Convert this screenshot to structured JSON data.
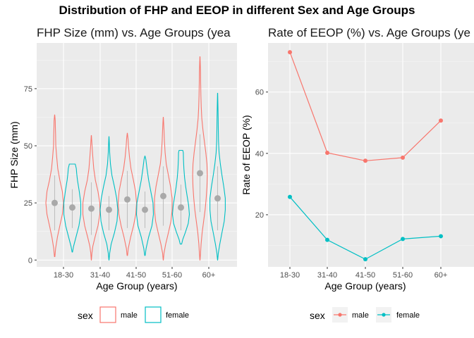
{
  "figure": {
    "title": "Distribution of FHP and EEOP in different Sex and Age Groups",
    "colors": {
      "male": "#F8766D",
      "female": "#00BFC4",
      "panel": "#EBEBEB",
      "grid": "#FFFFFF",
      "median_point": "#A9A9A9",
      "median_line": "#BFBFBF"
    },
    "legend_left": {
      "title": "sex",
      "entries": [
        "male",
        "female"
      ]
    },
    "legend_right": {
      "title": "sex",
      "entries": [
        "male",
        "female"
      ]
    }
  },
  "chart_data": [
    {
      "type": "violin",
      "title": "FHP Size (mm) vs. Age Groups (yea",
      "xlabel": "Age Group (years)",
      "ylabel": "FHP Size (mm)",
      "categories": [
        "18-30",
        "31-40",
        "41-50",
        "51-60",
        "60+"
      ],
      "ylim": [
        -3,
        95
      ],
      "yticks": [
        0,
        25,
        50,
        75
      ],
      "grid": true,
      "legend_position": "bottom",
      "series": [
        {
          "name": "male",
          "color": "#F8766D",
          "medians": [
            25,
            22.5,
            26.5,
            28,
            38
          ],
          "whisker_low": [
            13,
            11,
            14,
            15,
            21
          ],
          "whisker_high": [
            37,
            34,
            39,
            41,
            55
          ],
          "min": [
            1.5,
            0,
            2,
            0,
            0
          ],
          "max": [
            63.5,
            54.5,
            55.5,
            62.5,
            89
          ],
          "density": [
            [
              [
                1.5,
                0.01
              ],
              [
                5,
                0.05
              ],
              [
                10,
                0.15
              ],
              [
                15,
                0.28
              ],
              [
                20,
                0.42
              ],
              [
                25,
                0.48
              ],
              [
                30,
                0.42
              ],
              [
                35,
                0.28
              ],
              [
                40,
                0.17
              ],
              [
                45,
                0.11
              ],
              [
                50,
                0.06
              ],
              [
                55,
                0.05
              ],
              [
                58,
                0.04
              ],
              [
                61,
                0.03
              ],
              [
                63.5,
                0.005
              ]
            ],
            [
              [
                0,
                0.005
              ],
              [
                3,
                0.03
              ],
              [
                6,
                0.08
              ],
              [
                10,
                0.2
              ],
              [
                15,
                0.36
              ],
              [
                20,
                0.46
              ],
              [
                25,
                0.46
              ],
              [
                30,
                0.36
              ],
              [
                35,
                0.22
              ],
              [
                40,
                0.13
              ],
              [
                45,
                0.08
              ],
              [
                50,
                0.04
              ],
              [
                54.5,
                0.005
              ]
            ],
            [
              [
                2,
                0.01
              ],
              [
                5,
                0.05
              ],
              [
                10,
                0.18
              ],
              [
                15,
                0.34
              ],
              [
                20,
                0.46
              ],
              [
                25,
                0.5
              ],
              [
                30,
                0.45
              ],
              [
                35,
                0.33
              ],
              [
                40,
                0.2
              ],
              [
                45,
                0.12
              ],
              [
                50,
                0.06
              ],
              [
                53,
                0.04
              ],
              [
                55.5,
                0.005
              ]
            ],
            [
              [
                0,
                0.005
              ],
              [
                3,
                0.04
              ],
              [
                7,
                0.13
              ],
              [
                12,
                0.28
              ],
              [
                17,
                0.42
              ],
              [
                22,
                0.48
              ],
              [
                27,
                0.48
              ],
              [
                32,
                0.4
              ],
              [
                37,
                0.28
              ],
              [
                42,
                0.16
              ],
              [
                47,
                0.1
              ],
              [
                52,
                0.06
              ],
              [
                57,
                0.04
              ],
              [
                62.5,
                0.005
              ]
            ],
            [
              [
                0,
                0.005
              ],
              [
                3,
                0.03
              ],
              [
                7,
                0.06
              ],
              [
                12,
                0.12
              ],
              [
                17,
                0.2
              ],
              [
                22,
                0.28
              ],
              [
                27,
                0.34
              ],
              [
                32,
                0.38
              ],
              [
                37,
                0.4
              ],
              [
                42,
                0.38
              ],
              [
                47,
                0.32
              ],
              [
                52,
                0.24
              ],
              [
                57,
                0.16
              ],
              [
                62,
                0.1
              ],
              [
                67,
                0.07
              ],
              [
                72,
                0.05
              ],
              [
                77,
                0.04
              ],
              [
                82,
                0.03
              ],
              [
                86,
                0.015
              ],
              [
                89,
                0.005
              ]
            ]
          ]
        },
        {
          "name": "female",
          "color": "#00BFC4",
          "medians": [
            23,
            22,
            22,
            23,
            27
          ],
          "whisker_low": [
            14,
            13,
            14,
            13,
            13
          ],
          "whisker_high": [
            31,
            28,
            30,
            33,
            41
          ],
          "min": [
            3.5,
            0,
            2,
            7,
            0
          ],
          "max": [
            42,
            54,
            45.5,
            48,
            73
          ],
          "density": [
            [
              [
                3.5,
                0.01
              ],
              [
                6,
                0.07
              ],
              [
                10,
                0.2
              ],
              [
                15,
                0.36
              ],
              [
                20,
                0.46
              ],
              [
                25,
                0.46
              ],
              [
                30,
                0.38
              ],
              [
                35,
                0.28
              ],
              [
                38,
                0.24
              ],
              [
                40,
                0.22
              ],
              [
                42,
                0.16
              ]
            ],
            [
              [
                0,
                0.005
              ],
              [
                3,
                0.04
              ],
              [
                7,
                0.12
              ],
              [
                12,
                0.3
              ],
              [
                17,
                0.44
              ],
              [
                22,
                0.48
              ],
              [
                27,
                0.42
              ],
              [
                32,
                0.3
              ],
              [
                37,
                0.16
              ],
              [
                42,
                0.08
              ],
              [
                47,
                0.04
              ],
              [
                51,
                0.02
              ],
              [
                54,
                0.005
              ]
            ],
            [
              [
                2,
                0.01
              ],
              [
                5,
                0.06
              ],
              [
                10,
                0.2
              ],
              [
                15,
                0.38
              ],
              [
                20,
                0.46
              ],
              [
                25,
                0.44
              ],
              [
                30,
                0.32
              ],
              [
                35,
                0.2
              ],
              [
                40,
                0.11
              ],
              [
                44,
                0.05
              ],
              [
                45.5,
                0.005
              ]
            ],
            [
              [
                7,
                0.04
              ],
              [
                9,
                0.1
              ],
              [
                12,
                0.24
              ],
              [
                16,
                0.4
              ],
              [
                20,
                0.46
              ],
              [
                24,
                0.42
              ],
              [
                28,
                0.34
              ],
              [
                32,
                0.26
              ],
              [
                36,
                0.2
              ],
              [
                40,
                0.16
              ],
              [
                44,
                0.14
              ],
              [
                47,
                0.13
              ],
              [
                48,
                0.1
              ]
            ],
            [
              [
                0,
                0.005
              ],
              [
                3,
                0.04
              ],
              [
                7,
                0.12
              ],
              [
                12,
                0.24
              ],
              [
                17,
                0.36
              ],
              [
                22,
                0.42
              ],
              [
                27,
                0.42
              ],
              [
                32,
                0.34
              ],
              [
                37,
                0.24
              ],
              [
                42,
                0.15
              ],
              [
                47,
                0.08
              ],
              [
                52,
                0.05
              ],
              [
                57,
                0.04
              ],
              [
                62,
                0.03
              ],
              [
                67,
                0.02
              ],
              [
                73,
                0.005
              ]
            ]
          ]
        }
      ]
    },
    {
      "type": "line",
      "title": "Rate of EEOP (%) vs. Age Groups (ye",
      "xlabel": "Age Group (years)",
      "ylabel": "Rate of EEOP (%)",
      "categories": [
        "18-30",
        "31-40",
        "41-50",
        "51-60",
        "60+"
      ],
      "ylim": [
        3,
        76
      ],
      "yticks": [
        20,
        40,
        60
      ],
      "grid": true,
      "legend_position": "bottom",
      "series": [
        {
          "name": "male",
          "color": "#F8766D",
          "values": [
            73,
            40.2,
            37.6,
            38.6,
            50.7
          ]
        },
        {
          "name": "female",
          "color": "#00BFC4",
          "values": [
            25.8,
            11.8,
            5.5,
            12.1,
            13
          ]
        }
      ]
    }
  ]
}
